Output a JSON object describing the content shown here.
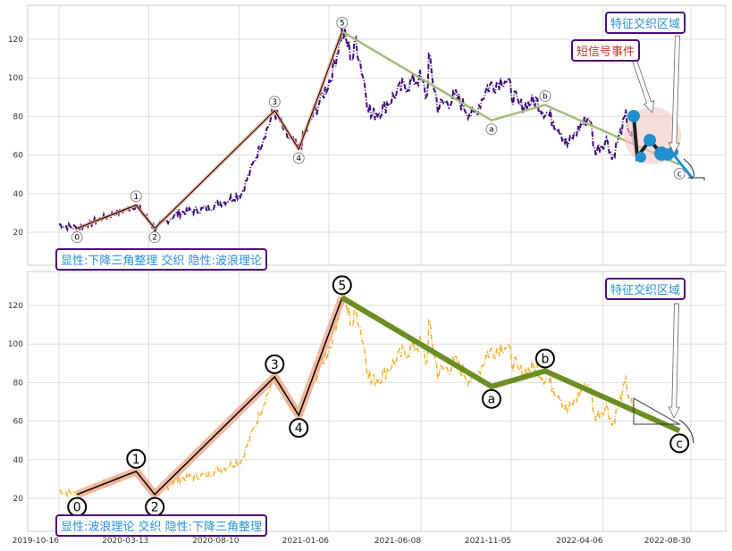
{
  "colors": {
    "price_top": "#3d0a7a",
    "price_bottom": "#efb030",
    "impulse_fill": "#f0a98a",
    "correction_top": "#a3bb7a",
    "correction_bottom": "#6b8e23",
    "signal": "#1f8fd0",
    "box_border": "#4b0a7f"
  },
  "chart_data": [
    {
      "type": "line",
      "panel": "top",
      "ylim": [
        3,
        138
      ],
      "yticks": [
        20,
        40,
        60,
        80,
        100,
        120
      ],
      "annotations": {
        "bottom_label": "显性:下降三角整理 交织 隐性:波浪理论",
        "zone_label": "特征交织区域",
        "signal_label": "短信号事件"
      }
    },
    {
      "type": "line",
      "panel": "bottom",
      "ylim": [
        3,
        138
      ],
      "yticks": [
        20,
        40,
        60,
        80,
        100,
        120
      ],
      "annotations": {
        "bottom_label": "显性:波浪理论 交织 隐性:下降三角整理",
        "zone_label": "特征交织区域"
      }
    }
  ],
  "xaxis": {
    "start": "2019-10-16",
    "ticks": [
      "2019-10-16",
      "2020-03-13",
      "2020-08-10",
      "2021-01-06",
      "2021-06-08",
      "2021-11-05",
      "2022-04-06",
      "2022-08-30"
    ]
  },
  "waves": [
    {
      "label": "0",
      "date": "2019-11-15",
      "price": 22
    },
    {
      "label": "1",
      "date": "2020-02-21",
      "price": 34
    },
    {
      "label": "2",
      "date": "2020-03-23",
      "price": 22
    },
    {
      "label": "3",
      "date": "2020-10-08",
      "price": 83
    },
    {
      "label": "4",
      "date": "2020-11-17",
      "price": 63
    },
    {
      "label": "5",
      "date": "2021-01-28",
      "price": 124
    },
    {
      "label": "a",
      "date": "2021-10-03",
      "price": 78
    },
    {
      "label": "b",
      "date": "2021-12-31",
      "price": 86
    },
    {
      "label": "c",
      "date": "2022-08-11",
      "price": 55
    }
  ],
  "price": [
    [
      "2019-10-16",
      24
    ],
    [
      "2019-11-15",
      22
    ],
    [
      "2020-02-21",
      34
    ],
    [
      "2020-03-23",
      22
    ],
    [
      "2020-05-02",
      30
    ],
    [
      "2020-06-15",
      32
    ],
    [
      "2020-08-14",
      40
    ],
    [
      "2020-09-27",
      75
    ],
    [
      "2020-10-08",
      83
    ],
    [
      "2020-10-27",
      70
    ],
    [
      "2020-11-17",
      63
    ],
    [
      "2020-12-10",
      80
    ],
    [
      "2021-01-09",
      100
    ],
    [
      "2021-01-28",
      124
    ],
    [
      "2021-02-15",
      110
    ],
    [
      "2021-02-20",
      120
    ],
    [
      "2021-03-17",
      80
    ],
    [
      "2021-04-08",
      85
    ],
    [
      "2021-05-08",
      95
    ],
    [
      "2021-06-06",
      100
    ],
    [
      "2021-06-18",
      90
    ],
    [
      "2021-06-21",
      110
    ],
    [
      "2021-07-06",
      85
    ],
    [
      "2021-08-05",
      90
    ],
    [
      "2021-09-03",
      80
    ],
    [
      "2021-09-26",
      95
    ],
    [
      "2021-10-25",
      100
    ],
    [
      "2021-11-17",
      85
    ],
    [
      "2021-12-16",
      88
    ],
    [
      "2022-01-22",
      75
    ],
    [
      "2022-02-06",
      65
    ],
    [
      "2022-02-28",
      75
    ],
    [
      "2022-03-15",
      80
    ],
    [
      "2022-03-23",
      62
    ],
    [
      "2022-04-14",
      68
    ],
    [
      "2022-04-21",
      58
    ],
    [
      "2022-05-14",
      80
    ],
    [
      "2022-05-28",
      62
    ]
  ]
}
